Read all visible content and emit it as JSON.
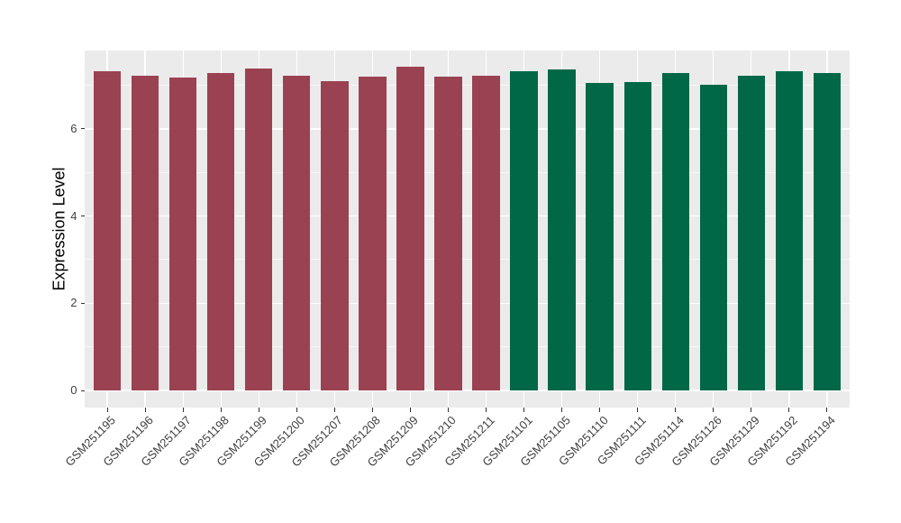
{
  "chart_data": {
    "type": "bar",
    "title": "",
    "xlabel": "",
    "ylabel": "Expression Level",
    "ylim": [
      0,
      7.8
    ],
    "yticks": [
      0,
      2,
      4,
      6
    ],
    "grid": "white major+minor gridlines on grey panel, legend absent",
    "panel_background": "#EBEBEB",
    "grid_color": "#FFFFFF",
    "group_colors": {
      "group1": "#9B4252",
      "group2": "#006847"
    },
    "bars": [
      {
        "label": "GSM251195",
        "value": 7.32,
        "group": "group1"
      },
      {
        "label": "GSM251196",
        "value": 7.22,
        "group": "group1"
      },
      {
        "label": "GSM251197",
        "value": 7.17,
        "group": "group1"
      },
      {
        "label": "GSM251198",
        "value": 7.29,
        "group": "group1"
      },
      {
        "label": "GSM251199",
        "value": 7.39,
        "group": "group1"
      },
      {
        "label": "GSM251200",
        "value": 7.22,
        "group": "group1"
      },
      {
        "label": "GSM251207",
        "value": 7.1,
        "group": "group1"
      },
      {
        "label": "GSM251208",
        "value": 7.19,
        "group": "group1"
      },
      {
        "label": "GSM251209",
        "value": 7.42,
        "group": "group1"
      },
      {
        "label": "GSM251210",
        "value": 7.19,
        "group": "group1"
      },
      {
        "label": "GSM251211",
        "value": 7.22,
        "group": "group1"
      },
      {
        "label": "GSM251101",
        "value": 7.33,
        "group": "group2"
      },
      {
        "label": "GSM251105",
        "value": 7.36,
        "group": "group2"
      },
      {
        "label": "GSM251110",
        "value": 7.05,
        "group": "group2"
      },
      {
        "label": "GSM251111",
        "value": 7.07,
        "group": "group2"
      },
      {
        "label": "GSM251114",
        "value": 7.27,
        "group": "group2"
      },
      {
        "label": "GSM251126",
        "value": 7.01,
        "group": "group2"
      },
      {
        "label": "GSM251129",
        "value": 7.22,
        "group": "group2"
      },
      {
        "label": "GSM251192",
        "value": 7.33,
        "group": "group2"
      },
      {
        "label": "GSM251194",
        "value": 7.29,
        "group": "group2"
      }
    ]
  }
}
